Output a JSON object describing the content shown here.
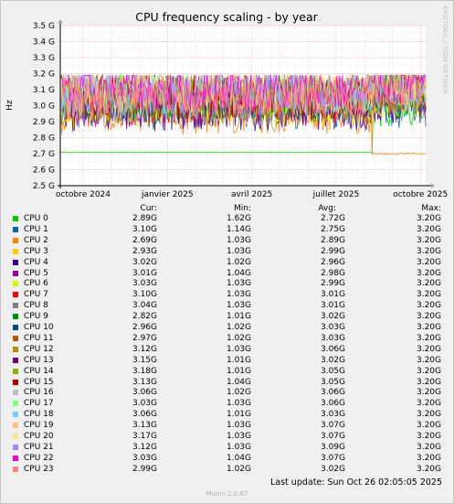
{
  "chart_data": {
    "type": "line",
    "title": "CPU frequency scaling - by year",
    "ylabel": "Hz",
    "y_ticks": [
      "2.5 G",
      "2.6 G",
      "2.7 G",
      "2.8 G",
      "2.9 G",
      "3.0 G",
      "3.1 G",
      "3.2 G",
      "3.3 G",
      "3.4 G",
      "3.5 G"
    ],
    "ylim": [
      2.5,
      3.5
    ],
    "x_ticks": [
      "octobre 2024",
      "janvier 2025",
      "avril 2025",
      "juillet 2025",
      "octobre 2025"
    ],
    "grid": true,
    "columns": [
      "Cur:",
      "Min:",
      "Avg:",
      "Max:"
    ],
    "series": [
      {
        "name": "CPU 0",
        "color": "#00cc00",
        "cur": "2.89G",
        "min": "1.62G",
        "avg": "2.72G",
        "max": "3.20G"
      },
      {
        "name": "CPU 1",
        "color": "#0066b3",
        "cur": "3.10G",
        "min": "1.14G",
        "avg": "2.75G",
        "max": "3.20G"
      },
      {
        "name": "CPU 2",
        "color": "#ff8000",
        "cur": "2.69G",
        "min": "1.03G",
        "avg": "2.89G",
        "max": "3.20G"
      },
      {
        "name": "CPU 3",
        "color": "#ffcc00",
        "cur": "2.93G",
        "min": "1.03G",
        "avg": "2.99G",
        "max": "3.20G"
      },
      {
        "name": "CPU 4",
        "color": "#330099",
        "cur": "3.02G",
        "min": "1.02G",
        "avg": "2.96G",
        "max": "3.20G"
      },
      {
        "name": "CPU 5",
        "color": "#990099",
        "cur": "3.01G",
        "min": "1.04G",
        "avg": "2.98G",
        "max": "3.20G"
      },
      {
        "name": "CPU 6",
        "color": "#ccff00",
        "cur": "3.03G",
        "min": "1.03G",
        "avg": "2.99G",
        "max": "3.20G"
      },
      {
        "name": "CPU 7",
        "color": "#ff0000",
        "cur": "3.10G",
        "min": "1.03G",
        "avg": "3.01G",
        "max": "3.20G"
      },
      {
        "name": "CPU 8",
        "color": "#808080",
        "cur": "3.04G",
        "min": "1.03G",
        "avg": "3.01G",
        "max": "3.20G"
      },
      {
        "name": "CPU 9",
        "color": "#008f00",
        "cur": "2.82G",
        "min": "1.01G",
        "avg": "3.02G",
        "max": "3.20G"
      },
      {
        "name": "CPU 10",
        "color": "#00487d",
        "cur": "2.96G",
        "min": "1.02G",
        "avg": "3.03G",
        "max": "3.20G"
      },
      {
        "name": "CPU 11",
        "color": "#b35a00",
        "cur": "2.97G",
        "min": "1.02G",
        "avg": "3.03G",
        "max": "3.20G"
      },
      {
        "name": "CPU 12",
        "color": "#b38f00",
        "cur": "3.12G",
        "min": "1.03G",
        "avg": "3.06G",
        "max": "3.20G"
      },
      {
        "name": "CPU 13",
        "color": "#6b006b",
        "cur": "3.15G",
        "min": "1.01G",
        "avg": "3.02G",
        "max": "3.20G"
      },
      {
        "name": "CPU 14",
        "color": "#8fb300",
        "cur": "3.18G",
        "min": "1.01G",
        "avg": "3.05G",
        "max": "3.20G"
      },
      {
        "name": "CPU 15",
        "color": "#b30000",
        "cur": "3.13G",
        "min": "1.04G",
        "avg": "3.05G",
        "max": "3.20G"
      },
      {
        "name": "CPU 16",
        "color": "#bebebe",
        "cur": "3.06G",
        "min": "1.02G",
        "avg": "3.06G",
        "max": "3.20G"
      },
      {
        "name": "CPU 17",
        "color": "#80ff80",
        "cur": "3.03G",
        "min": "1.03G",
        "avg": "3.06G",
        "max": "3.20G"
      },
      {
        "name": "CPU 18",
        "color": "#80c9ff",
        "cur": "3.06G",
        "min": "1.01G",
        "avg": "3.03G",
        "max": "3.20G"
      },
      {
        "name": "CPU 19",
        "color": "#ffc080",
        "cur": "3.13G",
        "min": "1.03G",
        "avg": "3.07G",
        "max": "3.20G"
      },
      {
        "name": "CPU 20",
        "color": "#ffe680",
        "cur": "3.17G",
        "min": "1.03G",
        "avg": "3.07G",
        "max": "3.20G"
      },
      {
        "name": "CPU 21",
        "color": "#aa80ff",
        "cur": "3.12G",
        "min": "1.03G",
        "avg": "3.09G",
        "max": "3.20G"
      },
      {
        "name": "CPU 22",
        "color": "#ee00cc",
        "cur": "3.03G",
        "min": "1.04G",
        "avg": "3.07G",
        "max": "3.20G"
      },
      {
        "name": "CPU 23",
        "color": "#ff8080",
        "cur": "2.99G",
        "min": "1.02G",
        "avg": "3.02G",
        "max": "3.20G"
      }
    ]
  },
  "last_update": "Last update: Sun Oct 26 02:05:05 2025",
  "footer": "Munin 2.0.67",
  "side_text": "RRDTOOL / TOBI OETIKER"
}
